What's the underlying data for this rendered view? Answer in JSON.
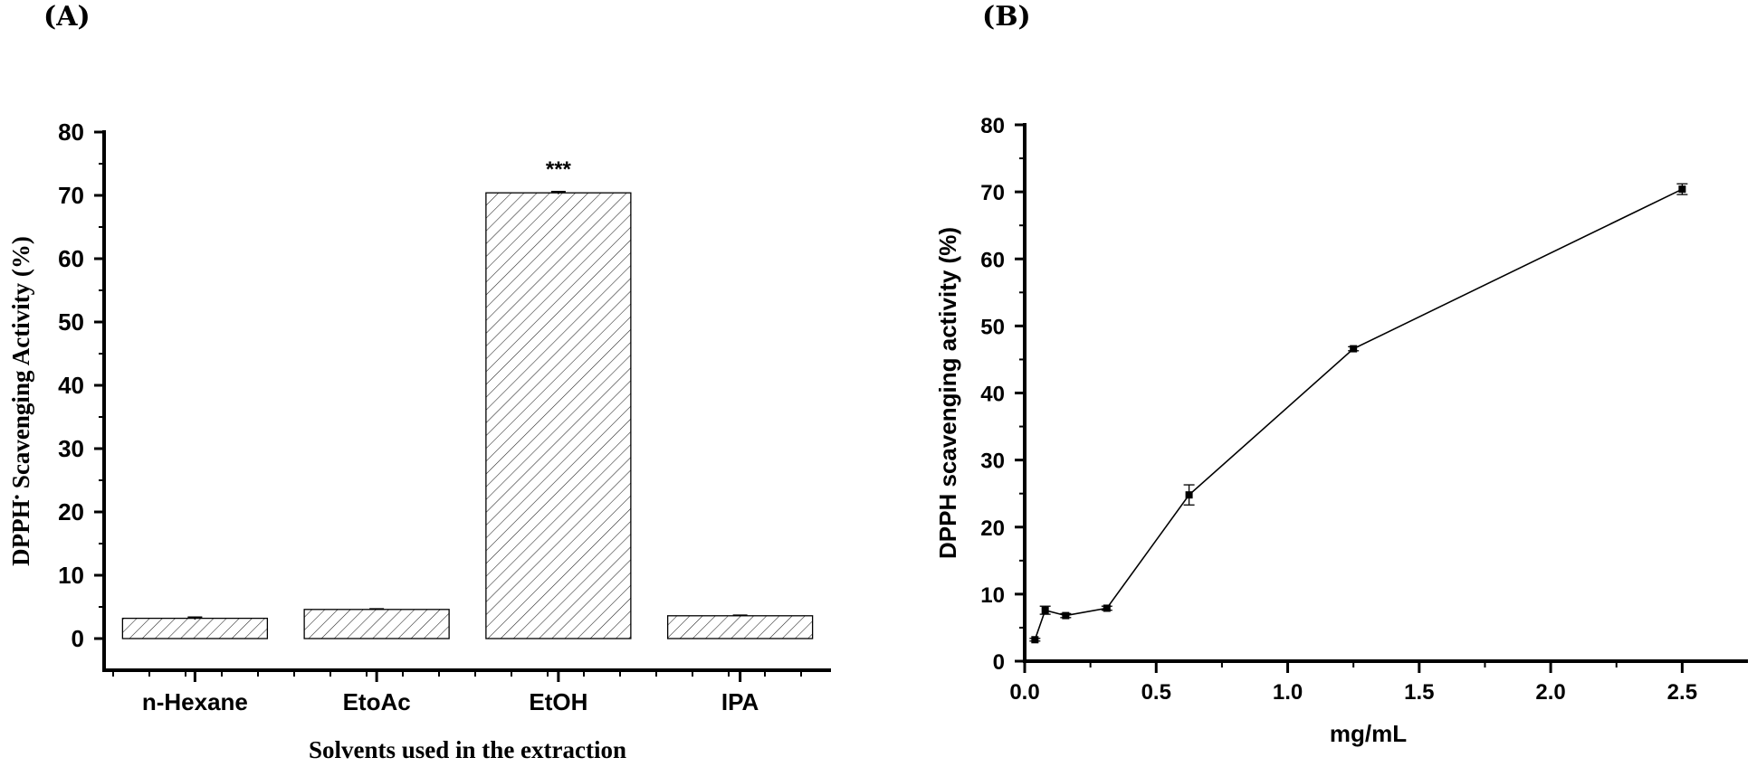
{
  "panels": {
    "a_label": "(A)",
    "b_label": "(B)"
  },
  "chart_data": [
    {
      "panel": "(A)",
      "type": "bar",
      "title": "",
      "xlabel": "Solvents used in the extraction",
      "ylabel_main": "DPPH",
      "ylabel_sup": "•",
      "ylabel_rest": " Scavenging Activity (%)",
      "categories": [
        "n-Hexane",
        "EtoAc",
        "EtOH",
        "IPA"
      ],
      "values": [
        3.2,
        4.6,
        70.4,
        3.6
      ],
      "errors": [
        0.2,
        0.1,
        0.2,
        0.1
      ],
      "annotations": [
        "",
        "",
        "***",
        ""
      ],
      "ylim": [
        -5,
        80
      ],
      "yticks": [
        0,
        10,
        20,
        30,
        40,
        50,
        60,
        70,
        80
      ],
      "ytick_labels": [
        "0",
        "10",
        "20",
        "30",
        "40",
        "50",
        "60",
        "70",
        "80"
      ],
      "bar_fill": "hatched",
      "grid": false
    },
    {
      "panel": "(B)",
      "type": "line",
      "title": "",
      "xlabel": "mg/mL",
      "ylabel": "DPPH scavenging activity (%)",
      "x": [
        0.039,
        0.078,
        0.156,
        0.3125,
        0.625,
        1.25,
        2.5
      ],
      "y": [
        3.2,
        7.6,
        6.8,
        7.9,
        24.8,
        46.6,
        70.4
      ],
      "errors": [
        0.2,
        0.6,
        0.3,
        0.3,
        1.5,
        0.3,
        0.8
      ],
      "xlim": [
        0,
        2.75
      ],
      "ylim": [
        0,
        80
      ],
      "xticks": [
        0.0,
        0.5,
        1.0,
        1.5,
        2.0,
        2.5
      ],
      "xtick_labels": [
        "0.0",
        "0.5",
        "1.0",
        "1.5",
        "2.0",
        "2.5"
      ],
      "yticks": [
        0,
        10,
        20,
        30,
        40,
        50,
        60,
        70,
        80
      ],
      "ytick_labels": [
        "0",
        "10",
        "20",
        "30",
        "40",
        "50",
        "60",
        "70",
        "80"
      ],
      "marker": "square",
      "grid": false
    }
  ]
}
